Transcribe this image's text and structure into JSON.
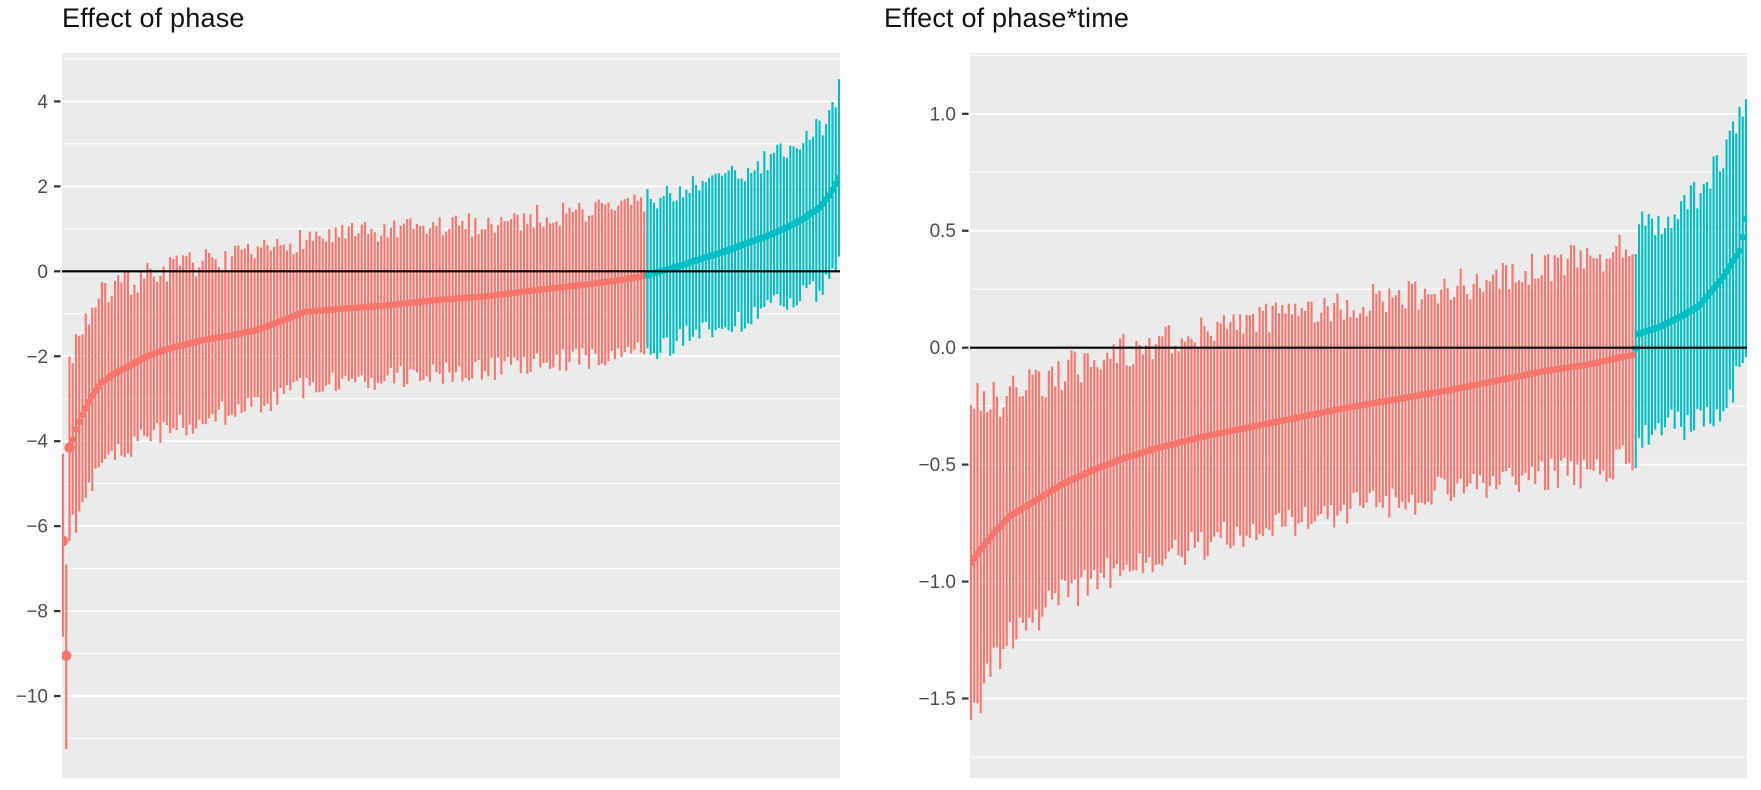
{
  "figure": {
    "kind": "two-panel caterpillar plot of random effects with confidence intervals",
    "background": "#ffffff"
  },
  "theme": {
    "panel_bg": "#EBEBEB",
    "grid_color": "#FFFFFF",
    "axis_text_color": "#4d4d4d",
    "tick_mark_color": "#333333",
    "title_color": "#111111",
    "zero_line_color": "#000000"
  },
  "chart_data": [
    {
      "type": "scatter",
      "style": "pointrange_caterpillar",
      "title": "Effect of phase",
      "n_points": 240,
      "color_split_fraction": 0.752,
      "colors": {
        "lower_group": "#F8766D",
        "upper_group": "#00BFC4"
      },
      "ylim": [
        -11.93,
        5.14
      ],
      "yticks": {
        "values": [
          4,
          2,
          0,
          -2,
          -4,
          -6,
          -8,
          -10
        ],
        "labels": [
          "4",
          "2",
          "0",
          "−2",
          "−4",
          "−6",
          "−8",
          "−10"
        ]
      },
      "grid": {
        "major": [
          -10,
          -8,
          -6,
          -4,
          -2,
          0,
          2,
          4
        ],
        "minor": [
          -11,
          -9,
          -7,
          -5,
          -3,
          -1,
          1,
          3,
          5
        ]
      },
      "zero_line": 0,
      "x_axis": {
        "labels_shown": false
      },
      "point_radius": 3.4,
      "outlier_point_radius": 5.2,
      "outliers": [
        {
          "index": 0,
          "est": -6.35,
          "lo": -8.6,
          "hi": -4.3
        },
        {
          "index": 1,
          "est": -9.05,
          "lo": -11.25,
          "hi": -6.9
        },
        {
          "index": 2,
          "est": -4.15,
          "lo": -6.35,
          "hi": -2.0
        }
      ],
      "estimate_curve": [
        [
          0.008,
          -4.15
        ],
        [
          0.012,
          -4.0
        ],
        [
          0.016,
          -3.75
        ],
        [
          0.022,
          -3.5
        ],
        [
          0.03,
          -3.2
        ],
        [
          0.04,
          -2.85
        ],
        [
          0.05,
          -2.62
        ],
        [
          0.065,
          -2.42
        ],
        [
          0.08,
          -2.28
        ],
        [
          0.1,
          -2.08
        ],
        [
          0.115,
          -1.95
        ],
        [
          0.14,
          -1.8
        ],
        [
          0.18,
          -1.62
        ],
        [
          0.22,
          -1.5
        ],
        [
          0.25,
          -1.38
        ],
        [
          0.28,
          -1.18
        ],
        [
          0.31,
          -0.96
        ],
        [
          0.36,
          -0.88
        ],
        [
          0.42,
          -0.8
        ],
        [
          0.48,
          -0.68
        ],
        [
          0.55,
          -0.58
        ],
        [
          0.62,
          -0.42
        ],
        [
          0.68,
          -0.3
        ],
        [
          0.72,
          -0.2
        ],
        [
          0.752,
          -0.1
        ],
        [
          0.76,
          -0.05
        ],
        [
          0.79,
          0.1
        ],
        [
          0.82,
          0.28
        ],
        [
          0.85,
          0.45
        ],
        [
          0.88,
          0.65
        ],
        [
          0.91,
          0.85
        ],
        [
          0.935,
          1.05
        ],
        [
          0.955,
          1.25
        ],
        [
          0.975,
          1.5
        ],
        [
          0.988,
          1.8
        ],
        [
          1.0,
          2.2
        ]
      ],
      "ci_halfwidth_curve": [
        [
          0.0,
          2.2
        ],
        [
          0.008,
          2.1
        ],
        [
          0.03,
          2.05
        ],
        [
          0.06,
          2.0
        ],
        [
          0.1,
          1.9
        ],
        [
          0.15,
          1.85
        ],
        [
          0.25,
          1.75
        ],
        [
          0.4,
          1.7
        ],
        [
          0.6,
          1.7
        ],
        [
          0.75,
          1.75
        ],
        [
          0.85,
          1.72
        ],
        [
          0.93,
          1.75
        ],
        [
          0.98,
          1.9
        ],
        [
          1.0,
          2.2
        ]
      ]
    },
    {
      "type": "scatter",
      "style": "pointrange_caterpillar",
      "title": "Effect of phase*time",
      "n_points": 240,
      "color_split_fraction": 0.856,
      "colors": {
        "lower_group": "#F8766D",
        "upper_group": "#00BFC4"
      },
      "ylim": [
        -1.84,
        1.26
      ],
      "yticks": {
        "values": [
          1.0,
          0.5,
          0.0,
          -0.5,
          -1.0,
          -1.5
        ],
        "labels": [
          "1.0",
          "0.5",
          "0.0",
          "−0.5",
          "−1.0",
          "−1.5"
        ]
      },
      "grid": {
        "major": [
          -1.5,
          -1.0,
          -0.5,
          0,
          0.5,
          1.0
        ],
        "minor": [
          -1.75,
          -1.25,
          -0.75,
          -0.25,
          0.25,
          0.75,
          1.25
        ]
      },
      "zero_line": 0,
      "x_axis": {
        "labels_shown": false
      },
      "point_radius": 3.4,
      "outlier_point_radius": 3.4,
      "outliers": [],
      "estimate_curve": [
        [
          0.0,
          -0.92
        ],
        [
          0.013,
          -0.86
        ],
        [
          0.03,
          -0.79
        ],
        [
          0.05,
          -0.72
        ],
        [
          0.08,
          -0.66
        ],
        [
          0.12,
          -0.58
        ],
        [
          0.16,
          -0.52
        ],
        [
          0.2,
          -0.47
        ],
        [
          0.24,
          -0.43
        ],
        [
          0.3,
          -0.38
        ],
        [
          0.36,
          -0.34
        ],
        [
          0.42,
          -0.3
        ],
        [
          0.48,
          -0.26
        ],
        [
          0.55,
          -0.22
        ],
        [
          0.62,
          -0.18
        ],
        [
          0.68,
          -0.14
        ],
        [
          0.74,
          -0.1
        ],
        [
          0.8,
          -0.07
        ],
        [
          0.84,
          -0.04
        ],
        [
          0.856,
          -0.03
        ],
        [
          0.862,
          0.06
        ],
        [
          0.89,
          0.09
        ],
        [
          0.92,
          0.14
        ],
        [
          0.94,
          0.18
        ],
        [
          0.955,
          0.24
        ],
        [
          0.97,
          0.3
        ],
        [
          0.983,
          0.37
        ],
        [
          0.993,
          0.42
        ],
        [
          1.0,
          0.55
        ]
      ],
      "ci_halfwidth_curve": [
        [
          0.0,
          0.68
        ],
        [
          0.02,
          0.58
        ],
        [
          0.05,
          0.52
        ],
        [
          0.1,
          0.48
        ],
        [
          0.2,
          0.46
        ],
        [
          0.4,
          0.44
        ],
        [
          0.6,
          0.43
        ],
        [
          0.8,
          0.45
        ],
        [
          0.9,
          0.44
        ],
        [
          1.0,
          0.56
        ]
      ]
    }
  ]
}
